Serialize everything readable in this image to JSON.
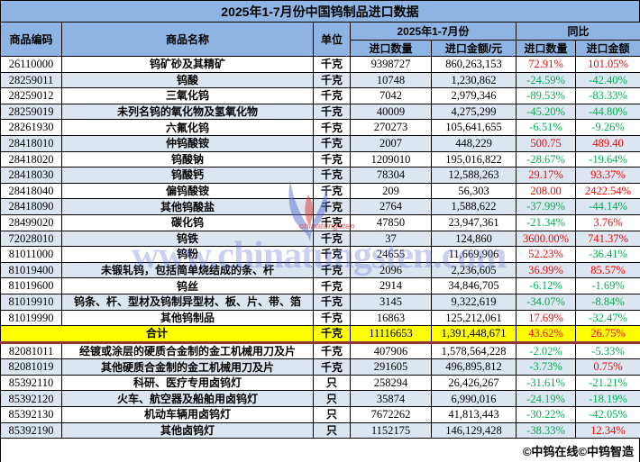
{
  "title": "2025年1-7月份中国钨制品进口数据",
  "colors": {
    "header_blue": "#8DB4E2",
    "band_blue": "#DCE6F1",
    "total_yellow": "#FFFF00",
    "up_red": "#FF0000",
    "down_green": "#00B050",
    "separator_dark_red": "#963634"
  },
  "table": {
    "headers": {
      "code": "商品编码",
      "name": "商品名称",
      "unit": "单位",
      "period_group": "2025年1-7月份",
      "yoy_group": "同比",
      "import_qty": "进口数量",
      "import_amount": "进口金额/元",
      "yoy_qty": "进口数量",
      "yoy_amount": "进口金额"
    },
    "rows": [
      {
        "code": "26110000",
        "name": "钨矿砂及其精矿",
        "unit": "千克",
        "qty": "9398727",
        "amount": "860,263,153",
        "yoy_qty": "72.91%",
        "yoy_amount": "101.05%"
      },
      {
        "code": "28259011",
        "name": "钨酸",
        "unit": "千克",
        "qty": "10748",
        "amount": "1,230,862",
        "yoy_qty": "-24.59%",
        "yoy_amount": "-42.40%"
      },
      {
        "code": "28259012",
        "name": "三氧化钨",
        "unit": "千克",
        "qty": "7042",
        "amount": "2,979,346",
        "yoy_qty": "-89.53%",
        "yoy_amount": "-83.33%"
      },
      {
        "code": "28259019",
        "name": "未列名钨的氧化物及氢氧化物",
        "unit": "千克",
        "qty": "40009",
        "amount": "4,275,299",
        "yoy_qty": "-45.20%",
        "yoy_amount": "-44.80%"
      },
      {
        "code": "28261930",
        "name": "六氟化钨",
        "unit": "千克",
        "qty": "270273",
        "amount": "105,641,655",
        "yoy_qty": "-6.51%",
        "yoy_amount": "-9.26%"
      },
      {
        "code": "28418010",
        "name": "仲钨酸铵",
        "unit": "千克",
        "qty": "2007",
        "amount": "448,229",
        "yoy_qty": "500.75",
        "yoy_amount": "489.40"
      },
      {
        "code": "28418020",
        "name": "钨酸钠",
        "unit": "千克",
        "qty": "1209010",
        "amount": "195,016,822",
        "yoy_qty": "-28.67%",
        "yoy_amount": "-19.64%"
      },
      {
        "code": "28418030",
        "name": "钨酸钙",
        "unit": "千克",
        "qty": "78304",
        "amount": "12,588,263",
        "yoy_qty": "29.17%",
        "yoy_amount": "93.37%"
      },
      {
        "code": "28418040",
        "name": "偏钨酸铵",
        "unit": "千克",
        "qty": "209",
        "amount": "56,303",
        "yoy_qty": "208.00",
        "yoy_amount": "2422.54%"
      },
      {
        "code": "28418090",
        "name": "其他钨酸盐",
        "unit": "千克",
        "qty": "2764",
        "amount": "1,588,622",
        "yoy_qty": "-37.99%",
        "yoy_amount": "-44.14%"
      },
      {
        "code": "28499020",
        "name": "碳化钨",
        "unit": "千克",
        "qty": "47850",
        "amount": "23,947,361",
        "yoy_qty": "-21.34%",
        "yoy_amount": "3.76%"
      },
      {
        "code": "72028010",
        "name": "钨铁",
        "unit": "千克",
        "qty": "37",
        "amount": "124,860",
        "yoy_qty": "3600.00%",
        "yoy_amount": "741.37%"
      },
      {
        "code": "81011000",
        "name": "钨粉",
        "unit": "千克",
        "qty": "24655",
        "amount": "11,669,906",
        "yoy_qty": "52.23%",
        "yoy_amount": "-36.41%"
      },
      {
        "code": "81019400",
        "name": "未锻轧钨，包括简单烧结成的条、杆",
        "unit": "千克",
        "qty": "2096",
        "amount": "2,236,605",
        "yoy_qty": "36.99%",
        "yoy_amount": "85.57%"
      },
      {
        "code": "81019600",
        "name": "钨丝",
        "unit": "千克",
        "qty": "2914",
        "amount": "34,846,705",
        "yoy_qty": "-6.12%",
        "yoy_amount": "-1.69%"
      },
      {
        "code": "81019910",
        "name": "钨条、杆、型材及钨制异型材、板、片、带、箔",
        "unit": "千克",
        "qty": "3145",
        "amount": "9,322,619",
        "yoy_qty": "-34.07%",
        "yoy_amount": "-8.84%"
      },
      {
        "code": "81019990",
        "name": "其他钨制品",
        "unit": "千克",
        "qty": "16863",
        "amount": "125,212,061",
        "yoy_qty": "17.69%",
        "yoy_amount": "-32.47%"
      },
      {
        "total": true,
        "name": "合计",
        "unit": "千克",
        "qty": "11116653",
        "amount": "1,391,448,671",
        "yoy_qty": "43.62%",
        "yoy_amount": "26.75%"
      },
      {
        "sep": true,
        "code": "82081011",
        "name": "经镀或涂层的硬质合金制的金工机械用刀及片",
        "unit": "千克",
        "qty": "407906",
        "amount": "1,578,564,228",
        "yoy_qty": "-2.02%",
        "yoy_amount": "-5.33%"
      },
      {
        "code": "82081019",
        "name": "其他硬质合金制的金工机械用刀及片",
        "unit": "千克",
        "qty": "291605",
        "amount": "496,895,812",
        "yoy_qty": "-3.73%",
        "yoy_amount": "0.75%"
      },
      {
        "code": "85392110",
        "name": "科研、医疗专用卤钨灯",
        "unit": "只",
        "qty": "258294",
        "amount": "26,426,267",
        "yoy_qty": "-31.61%",
        "yoy_amount": "-21.21%"
      },
      {
        "code": "85392120",
        "name": "火车、航空器及船舶用卤钨灯",
        "unit": "只",
        "qty": "35874",
        "amount": "6,990,016",
        "yoy_qty": "-24.19%",
        "yoy_amount": "-18.19%"
      },
      {
        "code": "85392130",
        "name": "机动车辆用卤钨灯",
        "unit": "只",
        "qty": "7672262",
        "amount": "41,813,443",
        "yoy_qty": "-30.22%",
        "yoy_amount": "-42.05%"
      },
      {
        "code": "85392190",
        "name": "其他卤钨灯",
        "unit": "只",
        "qty": "1152175",
        "amount": "146,129,428",
        "yoy_qty": "-38.33%",
        "yoy_amount": "12.34%"
      }
    ]
  },
  "watermark": {
    "text": "www.chinatungsten.com",
    "caption": "chinatungsten"
  },
  "footer": {
    "text": "©中钨在线©中钨智造"
  }
}
